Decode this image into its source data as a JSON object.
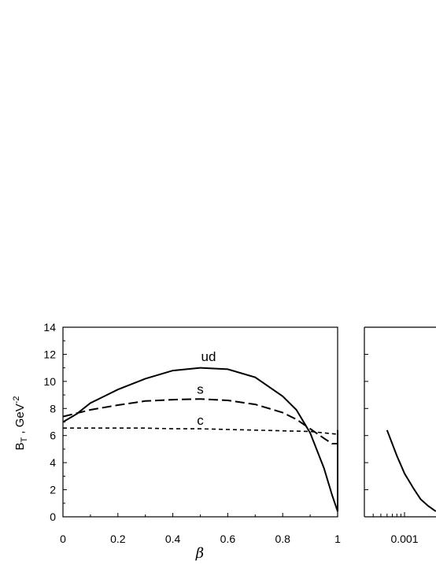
{
  "chart_data": [
    {
      "type": "line",
      "xlabel": "β",
      "ylabel_main": "B",
      "ylabel_sub": "T",
      "ylabel_rest": " , GeV",
      "ylabel_sup": "-2",
      "xlim": [
        0,
        1
      ],
      "ylim": [
        0,
        14
      ],
      "x_ticks": [
        0,
        0.2,
        0.4,
        0.6,
        0.8,
        1
      ],
      "x_tick_labels": [
        "0",
        "0.2",
        "0.4",
        "0.6",
        "0.8",
        "1"
      ],
      "y_ticks": [
        0,
        2,
        4,
        6,
        8,
        10,
        12,
        14
      ],
      "y_tick_labels": [
        "0",
        "2",
        "4",
        "6",
        "8",
        "10",
        "12",
        "14"
      ],
      "grid": false,
      "series": [
        {
          "name": "ud",
          "style": "solid",
          "x": [
            0,
            0.05,
            0.1,
            0.2,
            0.3,
            0.4,
            0.5,
            0.6,
            0.7,
            0.8,
            0.85,
            0.9,
            0.95,
            0.98,
            1.0
          ],
          "y": [
            7.0,
            7.6,
            8.4,
            9.4,
            10.2,
            10.8,
            11.0,
            10.9,
            10.3,
            8.9,
            7.9,
            6.2,
            3.6,
            1.6,
            0.4
          ]
        },
        {
          "name": "s",
          "style": "dashed",
          "x": [
            0,
            0.05,
            0.1,
            0.2,
            0.3,
            0.4,
            0.5,
            0.6,
            0.7,
            0.8,
            0.85,
            0.9,
            0.95,
            0.98,
            1.0
          ],
          "y": [
            7.4,
            7.65,
            7.9,
            8.25,
            8.55,
            8.65,
            8.7,
            8.6,
            8.3,
            7.7,
            7.2,
            6.5,
            5.8,
            5.4,
            5.4
          ]
        },
        {
          "name": "c",
          "style": "dotted",
          "x": [
            0,
            0.1,
            0.2,
            0.3,
            0.4,
            0.5,
            0.6,
            0.7,
            0.8,
            0.9,
            0.95,
            1.0
          ],
          "y": [
            6.55,
            6.55,
            6.55,
            6.55,
            6.5,
            6.5,
            6.45,
            6.4,
            6.35,
            6.3,
            6.2,
            6.1
          ]
        },
        {
          "name": "",
          "style": "solid",
          "x": [
            1.0,
            1.0
          ],
          "y": [
            0.4,
            6.4
          ]
        }
      ],
      "labels": [
        {
          "text": "ud",
          "x": 0.53,
          "y": 11.5
        },
        {
          "text": "s",
          "x": 0.5,
          "y": 9.1
        },
        {
          "text": "c",
          "x": 0.5,
          "y": 6.8
        }
      ]
    },
    {
      "type": "line",
      "xscale": "log",
      "x_tick_labels": [
        "0.001"
      ],
      "ylim": [
        0,
        14
      ],
      "grid": false,
      "series": [
        {
          "name": "",
          "style": "solid",
          "x": [
            0.0006,
            0.0008,
            0.001,
            0.0013,
            0.0016,
            0.002,
            0.0025
          ],
          "y": [
            6.4,
            4.5,
            3.2,
            2.1,
            1.3,
            0.8,
            0.4
          ]
        }
      ]
    }
  ]
}
